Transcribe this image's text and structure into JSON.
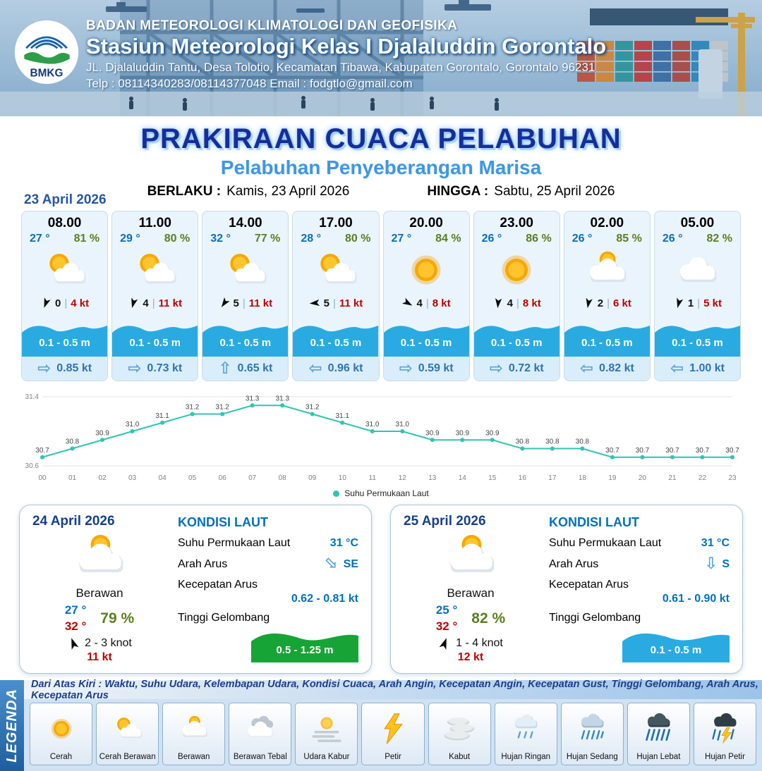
{
  "colors": {
    "temp_blue": "#0a6ebd",
    "humidity_green": "#5a7f1f",
    "gust_red": "#c00000",
    "wave_blue": "#29abe2",
    "wave_green": "#17a437",
    "chart_teal": "#2fc5b2",
    "title_navy": "#152e9b",
    "subtitle_blue": "#3f96e4"
  },
  "header": {
    "logo_text": "BMKG",
    "agency": "BADAN METEOROLOGI KLIMATOLOGI DAN GEOFISIKA",
    "station": "Stasiun Meteorologi Kelas I Djalaluddin Gorontalo",
    "address": "JL. Djalaluddin Tantu, Desa Tolotio, Kecamatan Tibawa, Kabupaten Gorontalo, Gorontalo 96231",
    "contact": "Telp : 08114340283/08114377048 Email : fodgtlo@gmail.com"
  },
  "title": {
    "main": "PRAKIRAAN CUACA PELABUHAN",
    "subtitle": "Pelabuhan Penyeberangan Marisa",
    "berlaku_label": "BERLAKU :",
    "berlaku_value": "Kamis, 23 April 2026",
    "hingga_label": "HINGGA :",
    "hingga_value": "Sabtu, 25 April 2026"
  },
  "forecast_date": "23 April 2026",
  "hourly": [
    {
      "time": "08.00",
      "temp": "27 °",
      "humidity": "81 %",
      "weather_icon": "cerah-berawan",
      "wind_dir_deg": 200,
      "wind_speed": "0",
      "gust": "4 kt",
      "wave_height": "0.1 - 0.5 m",
      "current_dir": "right",
      "current_speed": "0.85 kt"
    },
    {
      "time": "11.00",
      "temp": "29 °",
      "humidity": "80 %",
      "weather_icon": "cerah-berawan",
      "wind_dir_deg": 195,
      "wind_speed": "4",
      "gust": "11 kt",
      "wave_height": "0.1 - 0.5 m",
      "current_dir": "right",
      "current_speed": "0.73 kt"
    },
    {
      "time": "14.00",
      "temp": "32 °",
      "humidity": "77 %",
      "weather_icon": "cerah-berawan",
      "wind_dir_deg": 215,
      "wind_speed": "5",
      "gust": "11 kt",
      "wave_height": "0.1 - 0.5 m",
      "current_dir": "up",
      "current_speed": "0.65 kt"
    },
    {
      "time": "17.00",
      "temp": "28 °",
      "humidity": "80 %",
      "weather_icon": "cerah-berawan",
      "wind_dir_deg": 265,
      "wind_speed": "5",
      "gust": "11 kt",
      "wave_height": "0.1 - 0.5 m",
      "current_dir": "left",
      "current_speed": "0.96 kt"
    },
    {
      "time": "20.00",
      "temp": "27 °",
      "humidity": "84 %",
      "weather_icon": "cerah",
      "wind_dir_deg": 120,
      "wind_speed": "4",
      "gust": "8 kt",
      "wave_height": "0.1 - 0.5 m",
      "current_dir": "right",
      "current_speed": "0.59 kt"
    },
    {
      "time": "23.00",
      "temp": "26 °",
      "humidity": "86 %",
      "weather_icon": "cerah",
      "wind_dir_deg": 185,
      "wind_speed": "4",
      "gust": "8 kt",
      "wave_height": "0.1 - 0.5 m",
      "current_dir": "right",
      "current_speed": "0.72 kt"
    },
    {
      "time": "02.00",
      "temp": "26 °",
      "humidity": "85 %",
      "weather_icon": "berawan",
      "wind_dir_deg": 190,
      "wind_speed": "2",
      "gust": "6 kt",
      "wave_height": "0.1 - 0.5 m",
      "current_dir": "left",
      "current_speed": "0.82 kt"
    },
    {
      "time": "05.00",
      "temp": "26 °",
      "humidity": "82 %",
      "weather_icon": "cloud",
      "wind_dir_deg": 195,
      "wind_speed": "1",
      "gust": "5 kt",
      "wave_height": "0.1 - 0.5 m",
      "current_dir": "left",
      "current_speed": "1.00 kt"
    }
  ],
  "chart_data": {
    "type": "line",
    "title": "Suhu Permukaan Laut",
    "x": [
      "00",
      "01",
      "02",
      "03",
      "04",
      "05",
      "06",
      "07",
      "08",
      "09",
      "10",
      "11",
      "12",
      "13",
      "14",
      "15",
      "16",
      "17",
      "18",
      "19",
      "20",
      "21",
      "22",
      "23"
    ],
    "series": [
      {
        "name": "Suhu Permukaan Laut",
        "values": [
          30.7,
          30.8,
          30.9,
          31.0,
          31.1,
          31.2,
          31.2,
          31.3,
          31.3,
          31.2,
          31.1,
          31.0,
          31.0,
          30.9,
          30.9,
          30.9,
          30.8,
          30.8,
          30.8,
          30.7,
          30.7,
          30.7,
          30.7,
          30.7
        ]
      }
    ],
    "ylim": [
      30.6,
      31.4
    ],
    "xlabel": "",
    "ylabel": "",
    "grid": true,
    "legend_position": "bottom",
    "line_color": "#2fc5b2"
  },
  "days": [
    {
      "date": "24 April 2026",
      "condition": "Berawan",
      "icon": "berawan",
      "temp_min": "27 °",
      "temp_max": "32 °",
      "humidity": "79 %",
      "wind_dir_deg": -20,
      "wind_range": "2  - 3 knot",
      "gust": "11 kt",
      "sea": {
        "heading": "KONDISI LAUT",
        "sst_label": "Suhu Permukaan Laut",
        "sst": "31 °C",
        "current_dir_label": "Arah Arus",
        "current_dir": "SE",
        "current_speed_label": "Kecepatan Arus",
        "current_speed": "0.62  - 0.81 kt",
        "wave_label": "Tinggi Gelombang",
        "wave": "0.5 - 1.25 m",
        "wave_color": "#17a437"
      }
    },
    {
      "date": "25 April 2026",
      "condition": "Berawan",
      "icon": "berawan",
      "temp_min": "25 °",
      "temp_max": "32 °",
      "humidity": "82 %",
      "wind_dir_deg": 20,
      "wind_range": "1  - 4 knot",
      "gust": "12 kt",
      "sea": {
        "heading": "KONDISI LAUT",
        "sst_label": "Suhu Permukaan Laut",
        "sst": "31 °C",
        "current_dir_label": "Arah Arus",
        "current_dir": "S",
        "current_speed_label": "Kecepatan Arus",
        "current_speed": "0.61  - 0.90 kt",
        "wave_label": "Tinggi Gelombang",
        "wave": "0.1 - 0.5 m",
        "wave_color": "#29abe2"
      }
    }
  ],
  "legend": {
    "vertical_label": "LEGENDA",
    "description": "Dari Atas Kiri : Waktu, Suhu Udara, Kelembapan Udara, Kondisi Cuaca, Arah Angin, Kecepatan Angin, Kecepatan Gust, Tinggi Gelombang, Arah Arus, Kecepatan Arus",
    "items": [
      {
        "label": "Cerah",
        "icon": "cerah"
      },
      {
        "label": "Cerah Berawan",
        "icon": "cerah-berawan"
      },
      {
        "label": "Berawan",
        "icon": "berawan"
      },
      {
        "label": "Berawan Tebal",
        "icon": "berawan-tebal"
      },
      {
        "label": "Udara Kabur",
        "icon": "udara-kabur"
      },
      {
        "label": "Petir",
        "icon": "petir"
      },
      {
        "label": "Kabut",
        "icon": "kabut"
      },
      {
        "label": "Hujan Ringan",
        "icon": "hujan-ringan"
      },
      {
        "label": "Hujan Sedang",
        "icon": "hujan-sedang"
      },
      {
        "label": "Hujan Lebat",
        "icon": "hujan-lebat"
      },
      {
        "label": "Hujan Petir",
        "icon": "hujan-petir"
      }
    ]
  }
}
